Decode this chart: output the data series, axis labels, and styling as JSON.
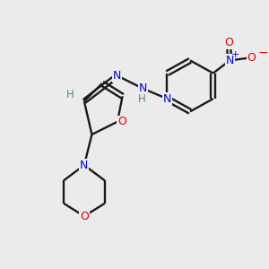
{
  "background_color": "#ebebeb",
  "bond_color": "#1a1a1a",
  "atom_colors": {
    "N": "#0000e0",
    "O": "#e00000",
    "H_imine": "#4a8a8a",
    "H_nh": "#4a8a8a"
  },
  "figsize": [
    3.0,
    3.0
  ],
  "dpi": 100
}
